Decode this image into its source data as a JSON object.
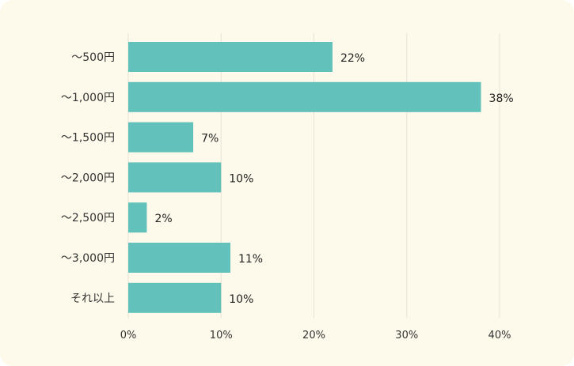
{
  "chart_data": {
    "type": "bar",
    "orientation": "horizontal",
    "categories": [
      "〜500円",
      "〜1,000円",
      "〜1,500円",
      "〜2,000円",
      "〜2,500円",
      "〜3,000円",
      "それ以上"
    ],
    "values": [
      22,
      38,
      7,
      10,
      2,
      11,
      10
    ],
    "value_labels": [
      "22%",
      "38%",
      "7%",
      "10%",
      "2%",
      "11%",
      "10%"
    ],
    "xlim": [
      0,
      40
    ],
    "x_ticks": [
      0,
      10,
      20,
      30,
      40
    ],
    "x_tick_labels": [
      "0%",
      "10%",
      "20%",
      "30%",
      "40%"
    ],
    "grid": true,
    "bar_color": "#62c2bb",
    "grid_color": "#e6e2d6",
    "background_color": "#fdfaeb"
  }
}
